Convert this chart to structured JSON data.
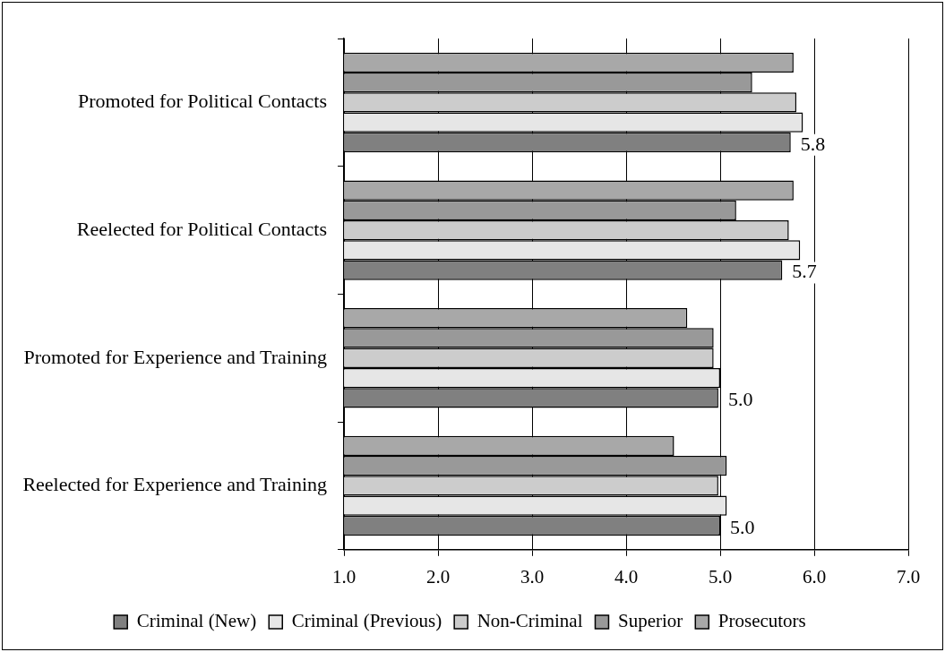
{
  "chart_data": {
    "type": "bar",
    "orientation": "horizontal",
    "categories": [
      "Promoted for Political Contacts",
      "Reelected for Political Contacts",
      "Promoted for Experience and Training",
      "Reelected for Experience and Training"
    ],
    "series": [
      {
        "name": "Criminal (New)",
        "color": "#808080",
        "values": [
          5.75,
          5.66,
          4.98,
          5.0
        ],
        "value_labels": [
          "5.8",
          "5.7",
          "5.0",
          "5.0"
        ]
      },
      {
        "name": "Criminal (Previous)",
        "color": "#e6e6e6",
        "values": [
          5.88,
          5.85,
          5.0,
          5.07
        ]
      },
      {
        "name": "Non-Criminal",
        "color": "#cccccc",
        "values": [
          5.81,
          5.73,
          4.93,
          4.98
        ]
      },
      {
        "name": "Superior",
        "color": "#999999",
        "values": [
          5.34,
          5.17,
          4.93,
          5.07
        ]
      },
      {
        "name": "Prosecutors",
        "color": "#a8a8a8",
        "values": [
          5.78,
          5.78,
          4.65,
          4.51
        ]
      }
    ],
    "xlim": [
      1,
      7
    ],
    "xticks": [
      {
        "value": 1,
        "label": "1.0"
      },
      {
        "value": 2,
        "label": "2.0"
      },
      {
        "value": 3,
        "label": "3.0"
      },
      {
        "value": 4,
        "label": "4.0"
      },
      {
        "value": 5,
        "label": "5.0"
      },
      {
        "value": 6,
        "label": "6.0"
      },
      {
        "value": 7,
        "label": "7.0"
      }
    ],
    "grid": "x",
    "legend": "bottom"
  }
}
